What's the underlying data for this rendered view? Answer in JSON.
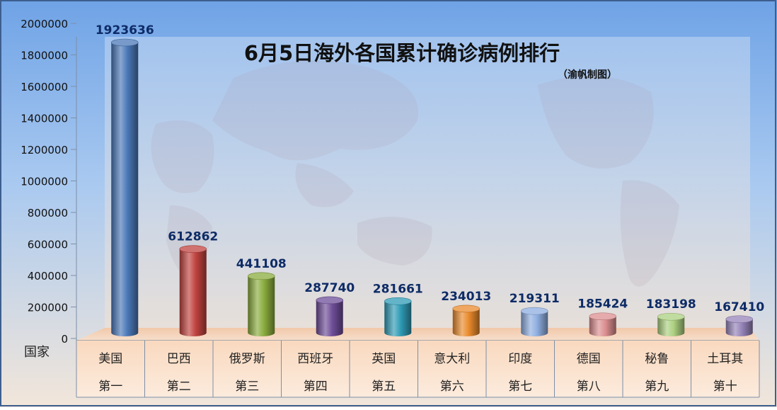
{
  "chart_data": {
    "type": "bar",
    "title": "6月5日海外各国累计确诊病例排行",
    "subtitle": "（渝帆制图）",
    "xlabel": "国家",
    "ylabel": "",
    "ylim": [
      0,
      2000000
    ],
    "yticks": [
      0,
      200000,
      400000,
      600000,
      800000,
      1000000,
      1200000,
      1400000,
      1600000,
      1800000,
      2000000
    ],
    "categories": [
      "美国",
      "巴西",
      "俄罗斯",
      "西班牙",
      "英国",
      "意大利",
      "印度",
      "德国",
      "秘鲁",
      "土耳其"
    ],
    "ranks": [
      "第一",
      "第二",
      "第三",
      "第四",
      "第五",
      "第六",
      "第七",
      "第八",
      "第九",
      "第十"
    ],
    "values": [
      1923636,
      612862,
      441108,
      287740,
      281661,
      234013,
      219311,
      185424,
      183198,
      167410
    ],
    "colors": [
      "#4a78b8",
      "#c0433f",
      "#8aac3e",
      "#6e4d98",
      "#2f9bb5",
      "#e98a2c",
      "#8eaee0",
      "#dc8e90",
      "#acd080",
      "#9583b8"
    ],
    "grid": false,
    "legend": "none"
  }
}
